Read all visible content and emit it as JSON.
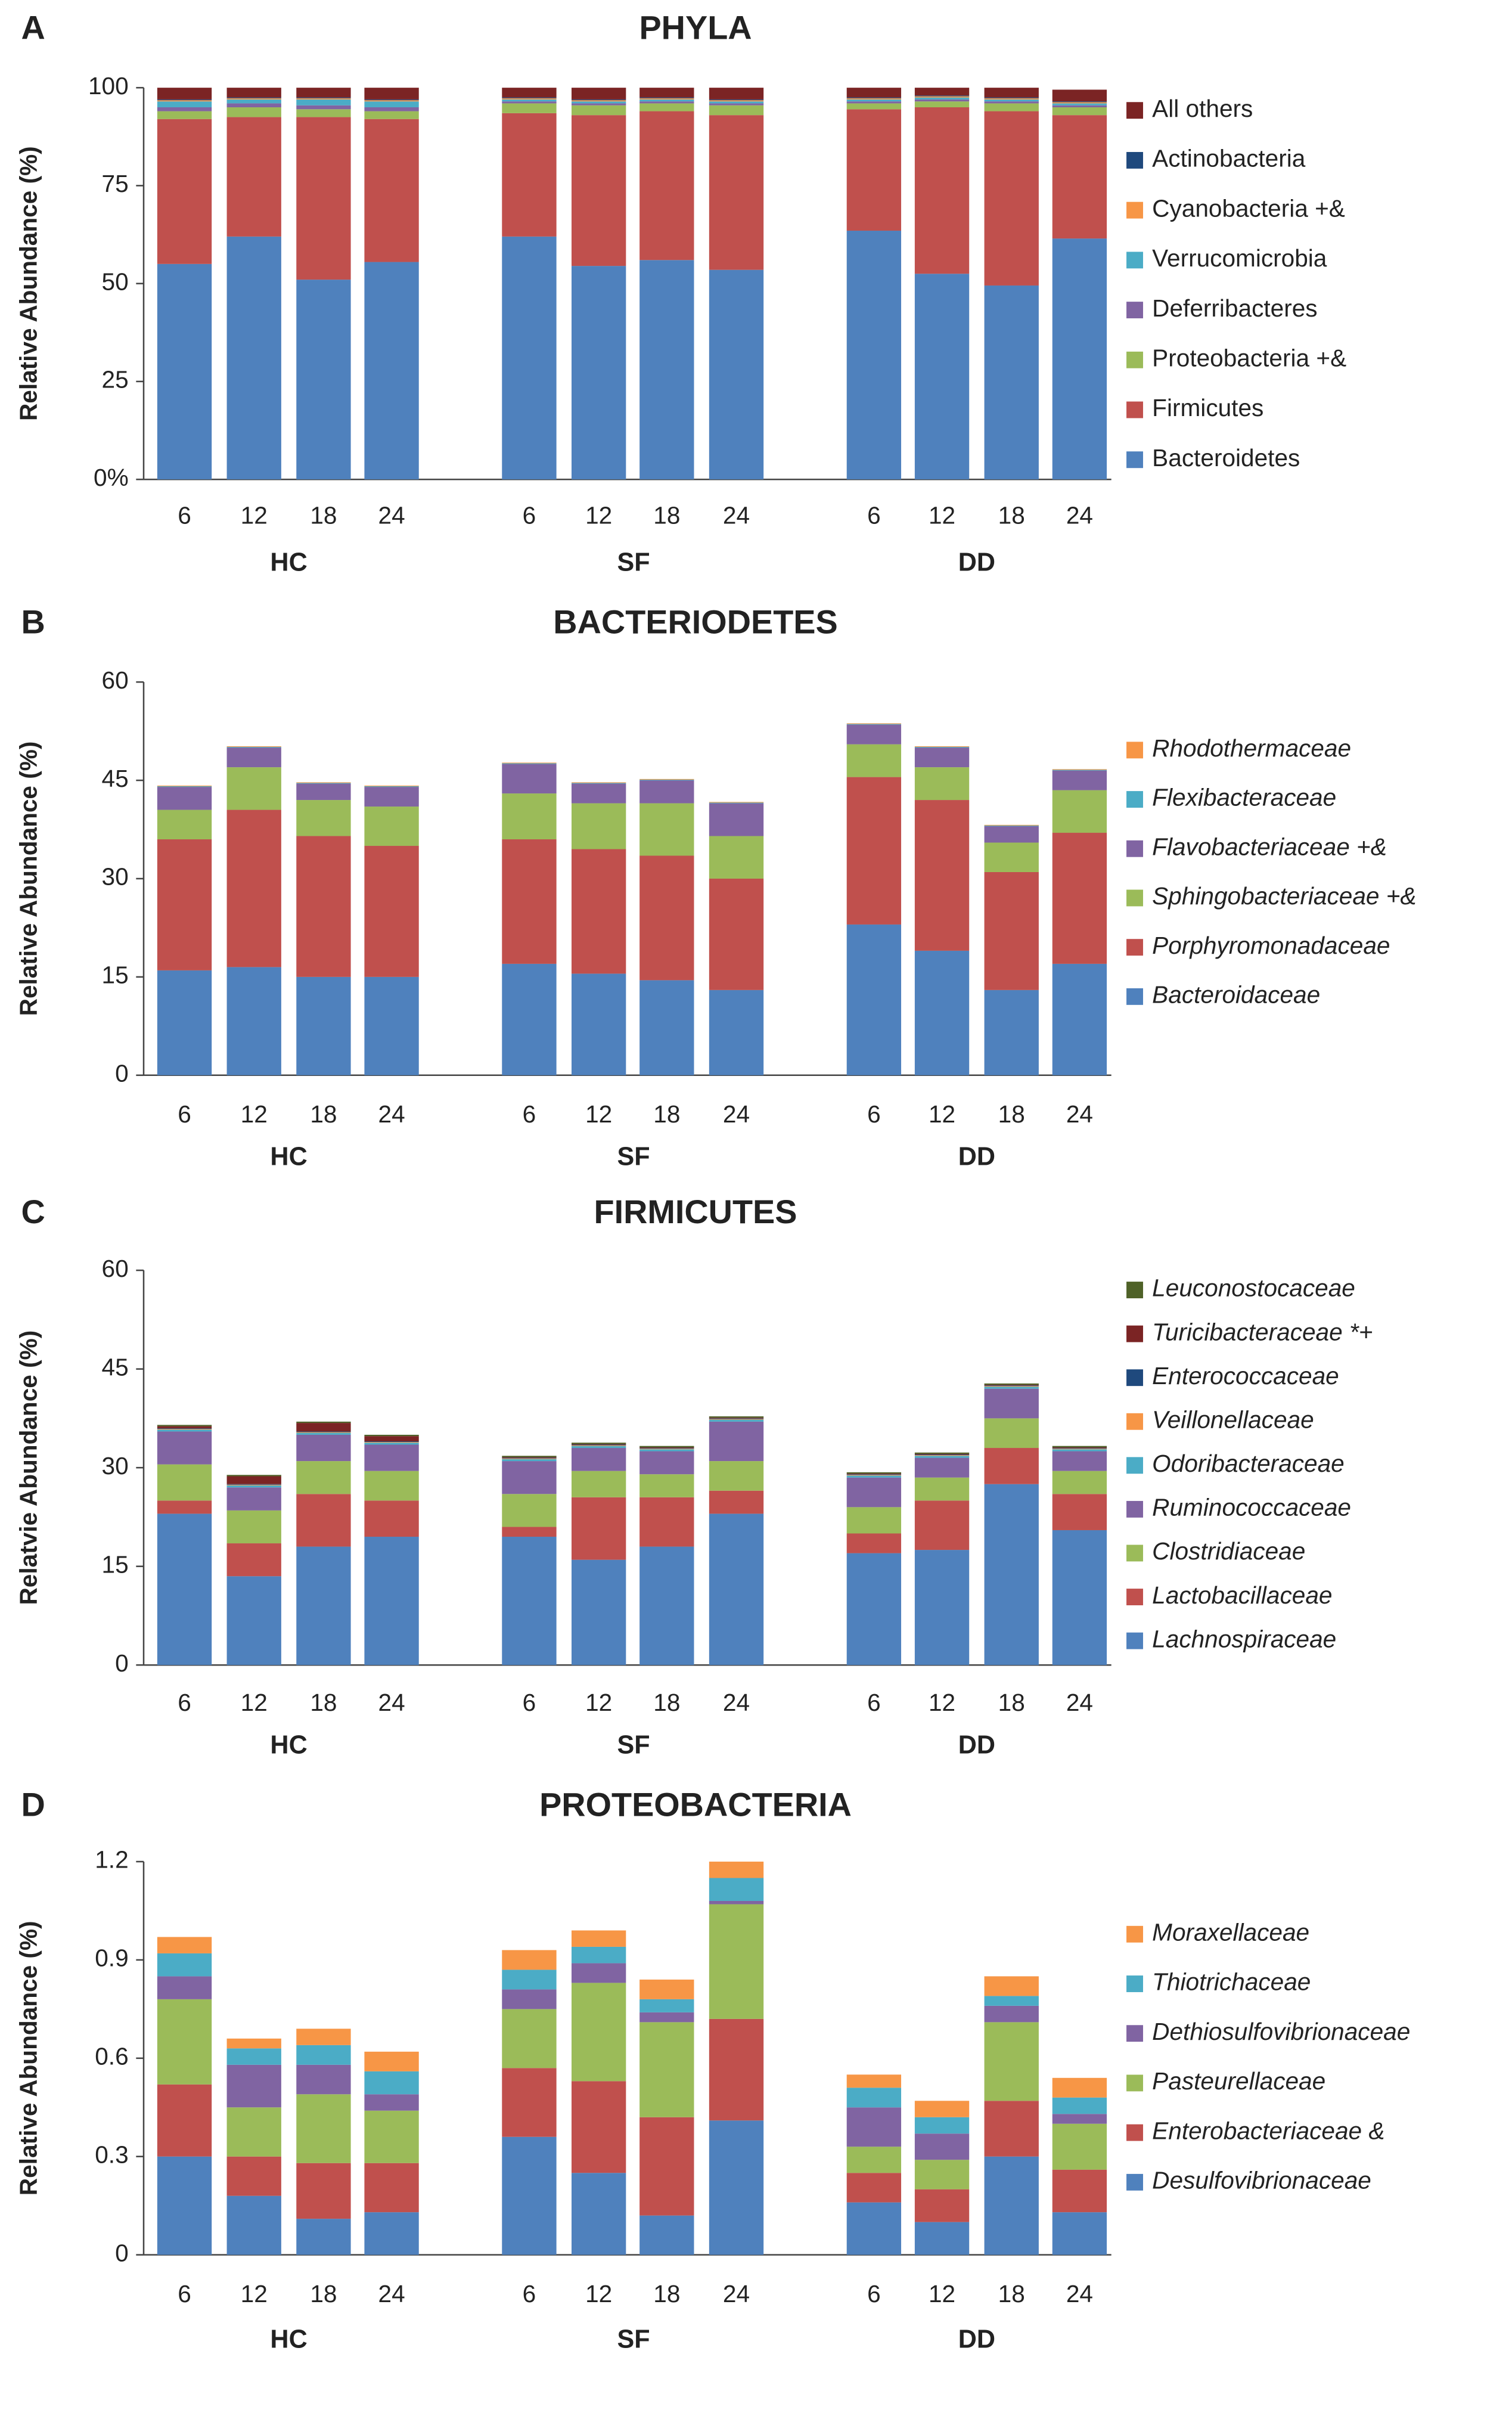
{
  "chart_data": [
    {
      "type": "stacked_bar",
      "panel": "A",
      "title": "PHYLA",
      "ylabel": "Relative Abundance (%)",
      "categories": [
        "6",
        "12",
        "18",
        "24",
        "6",
        "12",
        "18",
        "24",
        "6",
        "12",
        "18",
        "24"
      ],
      "groups": [
        "HC",
        "SF",
        "DD"
      ],
      "ylim": [
        0,
        100
      ],
      "yticks": [
        {
          "value": 0,
          "label": "0%"
        },
        25,
        50,
        75,
        100
      ],
      "italic_legend": false,
      "series": [
        {
          "name": "Bacteroidetes",
          "color": "#4f81bd",
          "values": [
            55,
            62,
            51,
            55.5,
            62,
            54.5,
            56,
            53.5,
            63.5,
            52.5,
            49.5,
            61.5
          ]
        },
        {
          "name": "Firmicutes",
          "color": "#c0504d",
          "values": [
            37,
            30.5,
            41.5,
            36.5,
            31.5,
            38.5,
            38,
            39.5,
            31,
            42.5,
            44.5,
            31.5
          ]
        },
        {
          "name": "Proteobacteria +&",
          "color": "#9bbb59",
          "values": [
            2,
            2.5,
            2,
            2,
            2.5,
            2.5,
            2,
            2.5,
            1.5,
            1.5,
            2,
            2
          ]
        },
        {
          "name": "Deferribacteres",
          "color": "#8064a2",
          "values": [
            1,
            1,
            1,
            1,
            0.5,
            0.5,
            0.5,
            0.5,
            0.5,
            0.5,
            0.5,
            0.5
          ]
        },
        {
          "name": "Verrucomicrobia",
          "color": "#4bacc6",
          "values": [
            1.5,
            1,
            1.5,
            1.5,
            0.5,
            0.5,
            0.5,
            0.5,
            0.5,
            0.5,
            0.5,
            0.5
          ]
        },
        {
          "name": "Cyanobacteria +&",
          "color": "#f79646",
          "values": [
            0.3,
            0.3,
            0.3,
            0.3,
            0.3,
            0.3,
            0.3,
            0.3,
            0.3,
            0.3,
            0.3,
            0.3
          ]
        },
        {
          "name": "Actinobacteria",
          "color": "#1f497d",
          "values": [
            0.2,
            0.2,
            0.2,
            0.2,
            0.2,
            0.2,
            0.2,
            0.2,
            0.2,
            0.2,
            0.2,
            0.2
          ]
        },
        {
          "name": "All others",
          "color": "#7b2424",
          "values": [
            3,
            2.5,
            2.5,
            3,
            2.5,
            3,
            2.5,
            3,
            2.5,
            2,
            2.5,
            3
          ]
        }
      ]
    },
    {
      "type": "stacked_bar",
      "panel": "B",
      "title": "BACTERIODETES",
      "ylabel": "Relative Abundance (%)",
      "categories": [
        "6",
        "12",
        "18",
        "24",
        "6",
        "12",
        "18",
        "24",
        "6",
        "12",
        "18",
        "24"
      ],
      "groups": [
        "HC",
        "SF",
        "DD"
      ],
      "ylim": [
        0,
        60
      ],
      "yticks": [
        0,
        15,
        30,
        45,
        60
      ],
      "italic_legend": true,
      "series": [
        {
          "name": "Bacteroidaceae",
          "color": "#4f81bd",
          "values": [
            16,
            16.5,
            15,
            15,
            17,
            15.5,
            14.5,
            13,
            23,
            19,
            13,
            17
          ]
        },
        {
          "name": "Porphyromonadaceae",
          "color": "#c0504d",
          "values": [
            20,
            24,
            21.5,
            20,
            19,
            19,
            19,
            17,
            22.5,
            23,
            18,
            20
          ]
        },
        {
          "name": "Sphingobacteriaceae +&",
          "color": "#9bbb59",
          "values": [
            4.5,
            6.5,
            5.5,
            6,
            7,
            7,
            8,
            6.5,
            5,
            5,
            4.5,
            6.5
          ]
        },
        {
          "name": "Flavobacteriaceae +&",
          "color": "#8064a2",
          "values": [
            3.5,
            3,
            2.5,
            3,
            4.5,
            3,
            3.5,
            5,
            3,
            3,
            2.5,
            3
          ]
        },
        {
          "name": "Flexibacteraceae",
          "color": "#4bacc6",
          "values": [
            0.1,
            0.1,
            0.1,
            0.1,
            0.1,
            0.1,
            0.1,
            0.1,
            0.1,
            0.1,
            0.1,
            0.1
          ]
        },
        {
          "name": "Rhodothermaceae",
          "color": "#f79646",
          "values": [
            0.1,
            0.1,
            0.1,
            0.1,
            0.1,
            0.1,
            0.1,
            0.1,
            0.1,
            0.1,
            0.1,
            0.1
          ]
        }
      ]
    },
    {
      "type": "stacked_bar",
      "panel": "C",
      "title": "FIRMICUTES",
      "ylabel": "Relatvie Abundance (%)",
      "categories": [
        "6",
        "12",
        "18",
        "24",
        "6",
        "12",
        "18",
        "24",
        "6",
        "12",
        "18",
        "24"
      ],
      "groups": [
        "HC",
        "SF",
        "DD"
      ],
      "ylim": [
        0,
        60
      ],
      "yticks": [
        0,
        15,
        30,
        45,
        60
      ],
      "italic_legend": true,
      "series": [
        {
          "name": "Lachnospiraceae",
          "color": "#4f81bd",
          "values": [
            23,
            13.5,
            18,
            19.5,
            19.5,
            16,
            18,
            23,
            17,
            17.5,
            27.5,
            20.5
          ]
        },
        {
          "name": "Lactobacillaceae",
          "color": "#c0504d",
          "values": [
            2,
            5,
            8,
            5.5,
            1.5,
            9.5,
            7.5,
            3.5,
            3,
            7.5,
            5.5,
            5.5
          ]
        },
        {
          "name": "Clostridiaceae",
          "color": "#9bbb59",
          "values": [
            5.5,
            5,
            5,
            4.5,
            5,
            4,
            3.5,
            4.5,
            4,
            3.5,
            4.5,
            3.5
          ]
        },
        {
          "name": "Ruminococcaceae",
          "color": "#8064a2",
          "values": [
            5,
            3.5,
            4,
            4,
            5,
            3.5,
            3.5,
            6,
            4.5,
            3,
            4.5,
            3
          ]
        },
        {
          "name": "Odoribacteraceae",
          "color": "#4bacc6",
          "values": [
            0.3,
            0.3,
            0.3,
            0.3,
            0.3,
            0.3,
            0.3,
            0.3,
            0.3,
            0.3,
            0.3,
            0.3
          ]
        },
        {
          "name": "Veillonellaceae",
          "color": "#f79646",
          "values": [
            0.1,
            0.1,
            0.1,
            0.1,
            0.1,
            0.1,
            0.1,
            0.1,
            0.1,
            0.1,
            0.1,
            0.1
          ]
        },
        {
          "name": "Enterococcaceae",
          "color": "#1f497d",
          "values": [
            0.1,
            0.1,
            0.1,
            0.1,
            0.1,
            0.1,
            0.1,
            0.1,
            0.1,
            0.1,
            0.1,
            0.1
          ]
        },
        {
          "name": "Turicibacteraceae *+",
          "color": "#7b2424",
          "values": [
            0.3,
            1.2,
            1.3,
            0.8,
            0.1,
            0.1,
            0.1,
            0.1,
            0.1,
            0.1,
            0.1,
            0.1
          ]
        },
        {
          "name": "Leuconostocaceae",
          "color": "#4f6228",
          "values": [
            0.2,
            0.2,
            0.2,
            0.2,
            0.2,
            0.2,
            0.2,
            0.2,
            0.2,
            0.2,
            0.2,
            0.2
          ]
        }
      ]
    },
    {
      "type": "stacked_bar",
      "panel": "D",
      "title": "PROTEOBACTERIA",
      "ylabel": "Relative Abundance (%)",
      "categories": [
        "6",
        "12",
        "18",
        "24",
        "6",
        "12",
        "18",
        "24",
        "6",
        "12",
        "18",
        "24"
      ],
      "groups": [
        "HC",
        "SF",
        "DD"
      ],
      "ylim": [
        0,
        1.2
      ],
      "yticks": [
        0,
        0.3,
        0.6,
        0.9,
        1.2
      ],
      "italic_legend": true,
      "series": [
        {
          "name": "Desulfovibrionaceae",
          "color": "#4f81bd",
          "values": [
            0.3,
            0.18,
            0.11,
            0.13,
            0.36,
            0.25,
            0.12,
            0.41,
            0.16,
            0.1,
            0.3,
            0.13
          ]
        },
        {
          "name": "Enterobacteriaceae &",
          "color": "#c0504d",
          "values": [
            0.22,
            0.12,
            0.17,
            0.15,
            0.21,
            0.28,
            0.3,
            0.31,
            0.09,
            0.1,
            0.17,
            0.13
          ]
        },
        {
          "name": "Pasteurellaceae",
          "color": "#9bbb59",
          "values": [
            0.26,
            0.15,
            0.21,
            0.16,
            0.18,
            0.3,
            0.29,
            0.35,
            0.08,
            0.09,
            0.24,
            0.14
          ]
        },
        {
          "name": "Dethiosulfovibrionaceae",
          "color": "#8064a2",
          "values": [
            0.07,
            0.13,
            0.09,
            0.05,
            0.06,
            0.06,
            0.03,
            0.01,
            0.12,
            0.08,
            0.05,
            0.03
          ]
        },
        {
          "name": "Thiotrichaceae",
          "color": "#4bacc6",
          "values": [
            0.07,
            0.05,
            0.06,
            0.07,
            0.06,
            0.05,
            0.04,
            0.07,
            0.06,
            0.05,
            0.03,
            0.05
          ]
        },
        {
          "name": "Moraxellaceae",
          "color": "#f79646",
          "values": [
            0.05,
            0.03,
            0.05,
            0.06,
            0.06,
            0.05,
            0.06,
            0.05,
            0.04,
            0.05,
            0.06,
            0.06
          ]
        }
      ]
    }
  ]
}
